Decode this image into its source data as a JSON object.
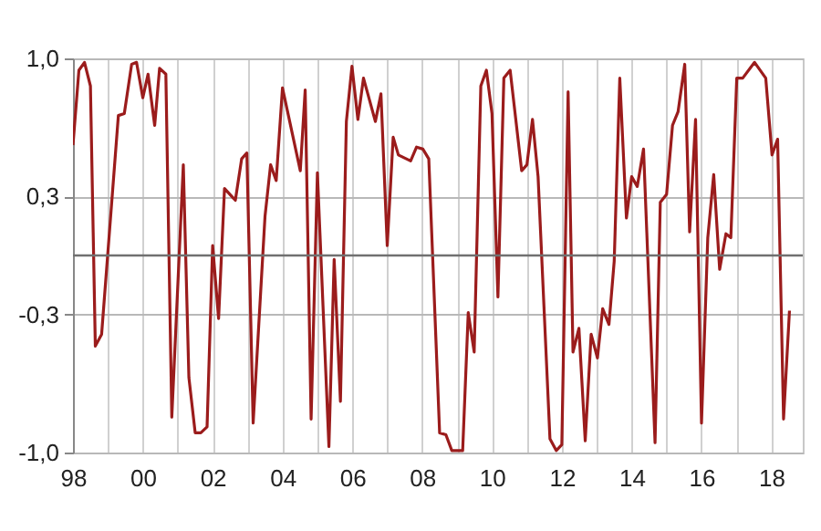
{
  "chart_data": {
    "type": "line",
    "color": "#9b1c1c",
    "line_style": "solid",
    "marker": "none",
    "grid": true,
    "x": [
      1998.0,
      1998.17,
      1998.33,
      1998.5,
      1998.64,
      1998.82,
      1999.3,
      1999.47,
      1999.68,
      1999.82,
      2000.0,
      2000.15,
      2000.34,
      2000.48,
      2000.66,
      2000.83,
      2001.16,
      2001.32,
      2001.5,
      2001.66,
      2001.84,
      2002.0,
      2002.17,
      2002.34,
      2002.65,
      2002.83,
      2002.98,
      2003.16,
      2003.5,
      2003.66,
      2003.82,
      2004.0,
      2004.51,
      2004.65,
      2004.82,
      2005.0,
      2005.33,
      2005.48,
      2005.66,
      2005.83,
      2005.99,
      2006.16,
      2006.32,
      2006.66,
      2006.82,
      2007.0,
      2007.17,
      2007.32,
      2007.67,
      2007.84,
      2008.02,
      2008.19,
      2008.5,
      2008.68,
      2008.85,
      2009.16,
      2009.32,
      2009.49,
      2009.68,
      2009.84,
      2010.0,
      2010.17,
      2010.34,
      2010.52,
      2010.85,
      2011.0,
      2011.16,
      2011.32,
      2011.66,
      2011.84,
      2012.0,
      2012.18,
      2012.32,
      2012.49,
      2012.67,
      2012.84,
      2013.02,
      2013.17,
      2013.35,
      2013.5,
      2013.66,
      2013.85,
      2014.0,
      2014.16,
      2014.34,
      2014.67,
      2014.82,
      2015.0,
      2015.17,
      2015.33,
      2015.52,
      2015.66,
      2015.83,
      2016.0,
      2016.18,
      2016.35,
      2016.52,
      2016.7,
      2016.84,
      2017.01,
      2017.18,
      2017.52,
      2017.84,
      2018.02,
      2018.18,
      2018.35,
      2018.52
    ],
    "values": [
      0.56,
      0.94,
      0.98,
      0.86,
      -0.46,
      -0.4,
      0.71,
      0.72,
      0.97,
      0.98,
      0.8,
      0.92,
      0.66,
      0.95,
      0.92,
      -0.82,
      0.46,
      -0.62,
      -0.9,
      -0.9,
      -0.87,
      0.05,
      -0.32,
      0.34,
      0.28,
      0.49,
      0.52,
      -0.85,
      0.2,
      0.46,
      0.38,
      0.85,
      0.43,
      0.84,
      -0.83,
      0.42,
      -0.97,
      -0.02,
      -0.74,
      0.68,
      0.96,
      0.69,
      0.9,
      0.68,
      0.82,
      0.05,
      0.6,
      0.51,
      0.48,
      0.55,
      0.54,
      0.49,
      -0.9,
      -0.91,
      -0.99,
      -0.99,
      -0.29,
      -0.49,
      0.86,
      0.94,
      0.72,
      -0.21,
      0.9,
      0.94,
      0.43,
      0.46,
      0.69,
      0.4,
      -0.93,
      -0.99,
      -0.96,
      0.83,
      -0.49,
      -0.37,
      -0.94,
      -0.4,
      -0.52,
      -0.27,
      -0.35,
      -0.03,
      0.9,
      0.19,
      0.4,
      0.35,
      0.54,
      -0.95,
      0.27,
      0.31,
      0.66,
      0.73,
      0.97,
      0.12,
      0.69,
      -0.85,
      0.09,
      0.41,
      -0.07,
      0.11,
      0.09,
      0.9,
      0.9,
      0.98,
      0.9,
      0.51,
      0.59,
      -0.83,
      -0.28
    ],
    "xlim": [
      1998,
      2018.9
    ],
    "xticks": [
      {
        "value": 1998,
        "label": "98"
      },
      {
        "value": 1999,
        "label": null
      },
      {
        "value": 2000,
        "label": "00"
      },
      {
        "value": 2001,
        "label": null
      },
      {
        "value": 2002,
        "label": "02"
      },
      {
        "value": 2003,
        "label": null
      },
      {
        "value": 2004,
        "label": "04"
      },
      {
        "value": 2005,
        "label": null
      },
      {
        "value": 2006,
        "label": "06"
      },
      {
        "value": 2007,
        "label": null
      },
      {
        "value": 2008,
        "label": "08"
      },
      {
        "value": 2009,
        "label": null
      },
      {
        "value": 2010,
        "label": "10"
      },
      {
        "value": 2011,
        "label": null
      },
      {
        "value": 2012,
        "label": "12"
      },
      {
        "value": 2013,
        "label": null
      },
      {
        "value": 2014,
        "label": "14"
      },
      {
        "value": 2015,
        "label": null
      },
      {
        "value": 2016,
        "label": "16"
      },
      {
        "value": 2017,
        "label": null
      },
      {
        "value": 2018,
        "label": "18"
      }
    ],
    "ylim": [
      -1.0,
      1.0
    ],
    "yticks": [
      {
        "value": -1.0,
        "label": "-1,0"
      },
      {
        "value": -0.3,
        "label": "-0,3"
      },
      {
        "value": 0.3,
        "label": "0,3"
      },
      {
        "value": 1.0,
        "label": "1,0"
      }
    ],
    "ref_lines": [
      {
        "axis": "y",
        "value": 0,
        "color": "#707070"
      }
    ]
  }
}
